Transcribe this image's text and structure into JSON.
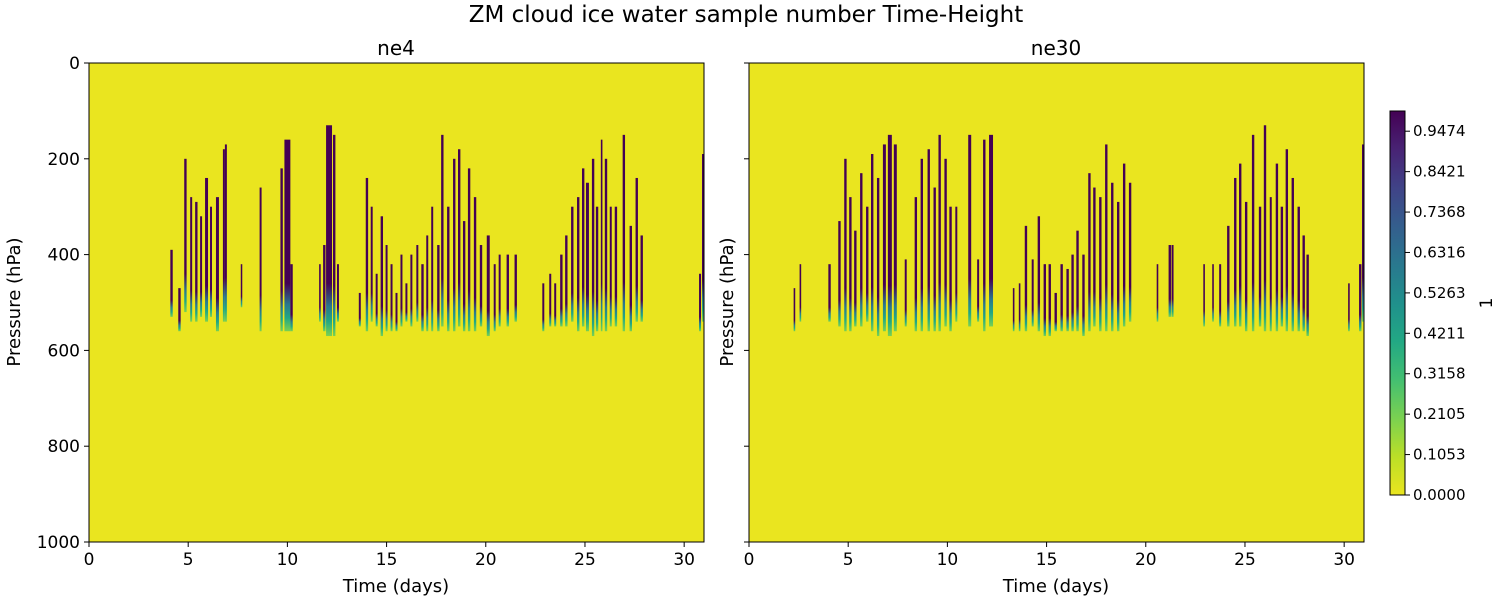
{
  "figure_title": "ZM cloud ice water sample number Time-Height",
  "colors": {
    "background": "#eae51f",
    "viridis": [
      "#440154",
      "#482374",
      "#404387",
      "#345e8d",
      "#29788e",
      "#20908c",
      "#22a884",
      "#43bf71",
      "#7ad151",
      "#bbdf27",
      "#fde725"
    ]
  },
  "chart_data": {
    "type": "heatmap",
    "panels": [
      {
        "title": "ne4",
        "xlabel": "Time (days)",
        "ylabel": "Pressure (hPa)",
        "xlim": [
          0,
          31
        ],
        "ylim": [
          1000,
          0
        ],
        "xticks": [
          "0",
          "5",
          "10",
          "15",
          "20",
          "25",
          "30"
        ],
        "yticks": [
          "0",
          "200",
          "400",
          "600",
          "800",
          "1000"
        ],
        "background_value": 0.0,
        "events": [
          [
            4.1,
            0.12,
            390,
            530
          ],
          [
            4.5,
            0.12,
            470,
            560
          ],
          [
            4.8,
            0.12,
            200,
            520
          ],
          [
            5.1,
            0.1,
            280,
            540
          ],
          [
            5.35,
            0.12,
            290,
            540
          ],
          [
            5.6,
            0.1,
            320,
            530
          ],
          [
            5.85,
            0.15,
            240,
            540
          ],
          [
            6.1,
            0.1,
            300,
            530
          ],
          [
            6.4,
            0.15,
            280,
            560
          ],
          [
            6.75,
            0.1,
            180,
            540
          ],
          [
            6.85,
            0.1,
            170,
            540
          ],
          [
            7.65,
            0.05,
            420,
            510
          ],
          [
            8.6,
            0.1,
            260,
            560
          ],
          [
            9.65,
            0.12,
            220,
            560
          ],
          [
            9.85,
            0.3,
            160,
            560
          ],
          [
            10.15,
            0.12,
            420,
            560
          ],
          [
            11.6,
            0.08,
            420,
            540
          ],
          [
            11.8,
            0.12,
            380,
            560
          ],
          [
            11.95,
            0.3,
            130,
            570
          ],
          [
            12.3,
            0.12,
            150,
            570
          ],
          [
            12.5,
            0.1,
            420,
            540
          ],
          [
            13.6,
            0.1,
            480,
            550
          ],
          [
            13.95,
            0.12,
            240,
            560
          ],
          [
            14.2,
            0.1,
            300,
            540
          ],
          [
            14.45,
            0.1,
            440,
            550
          ],
          [
            14.7,
            0.12,
            320,
            570
          ],
          [
            14.95,
            0.1,
            380,
            560
          ],
          [
            15.2,
            0.1,
            420,
            560
          ],
          [
            15.45,
            0.1,
            480,
            560
          ],
          [
            15.7,
            0.1,
            400,
            550
          ],
          [
            15.95,
            0.1,
            460,
            540
          ],
          [
            16.2,
            0.1,
            400,
            550
          ],
          [
            16.5,
            0.1,
            380,
            540
          ],
          [
            16.75,
            0.12,
            420,
            560
          ],
          [
            17.0,
            0.1,
            360,
            560
          ],
          [
            17.25,
            0.1,
            300,
            560
          ],
          [
            17.55,
            0.12,
            380,
            560
          ],
          [
            17.75,
            0.12,
            150,
            550
          ],
          [
            18.05,
            0.12,
            300,
            560
          ],
          [
            18.35,
            0.12,
            200,
            560
          ],
          [
            18.6,
            0.12,
            180,
            550
          ],
          [
            18.85,
            0.12,
            330,
            560
          ],
          [
            19.1,
            0.12,
            220,
            560
          ],
          [
            19.4,
            0.12,
            280,
            560
          ],
          [
            19.7,
            0.12,
            380,
            550
          ],
          [
            20.05,
            0.15,
            360,
            570
          ],
          [
            20.4,
            0.1,
            420,
            560
          ],
          [
            20.65,
            0.1,
            400,
            550
          ],
          [
            21.05,
            0.12,
            400,
            550
          ],
          [
            21.45,
            0.12,
            400,
            540
          ],
          [
            22.85,
            0.1,
            460,
            560
          ],
          [
            23.2,
            0.1,
            440,
            550
          ],
          [
            23.45,
            0.1,
            460,
            550
          ],
          [
            23.75,
            0.12,
            400,
            550
          ],
          [
            24.0,
            0.12,
            360,
            550
          ],
          [
            24.3,
            0.12,
            300,
            540
          ],
          [
            24.6,
            0.12,
            280,
            560
          ],
          [
            24.85,
            0.12,
            220,
            550
          ],
          [
            25.05,
            0.15,
            250,
            560
          ],
          [
            25.35,
            0.12,
            200,
            570
          ],
          [
            25.55,
            0.12,
            300,
            560
          ],
          [
            25.8,
            0.08,
            160,
            560
          ],
          [
            26.0,
            0.12,
            200,
            560
          ],
          [
            26.25,
            0.1,
            300,
            550
          ],
          [
            26.5,
            0.12,
            300,
            550
          ],
          [
            26.9,
            0.12,
            150,
            560
          ],
          [
            27.25,
            0.12,
            340,
            560
          ],
          [
            27.55,
            0.12,
            240,
            540
          ],
          [
            27.8,
            0.12,
            360,
            540
          ],
          [
            30.75,
            0.1,
            440,
            560
          ],
          [
            30.9,
            0.1,
            190,
            540
          ]
        ]
      },
      {
        "title": "ne30",
        "xlabel": "Time (days)",
        "ylabel": "Pressure (hPa)",
        "xlim": [
          0,
          31
        ],
        "ylim": [
          1000,
          0
        ],
        "xticks": [
          "0",
          "5",
          "10",
          "15",
          "20",
          "25",
          "30"
        ],
        "yticks": [
          "",
          "",
          "",
          "",
          "",
          ""
        ],
        "background_value": 0.0,
        "events": [
          [
            2.25,
            0.08,
            470,
            560
          ],
          [
            2.55,
            0.08,
            420,
            540
          ],
          [
            4.0,
            0.12,
            420,
            540
          ],
          [
            4.5,
            0.12,
            330,
            550
          ],
          [
            4.8,
            0.12,
            200,
            560
          ],
          [
            5.05,
            0.12,
            280,
            560
          ],
          [
            5.3,
            0.12,
            350,
            550
          ],
          [
            5.6,
            0.12,
            230,
            550
          ],
          [
            5.9,
            0.12,
            300,
            540
          ],
          [
            6.15,
            0.12,
            190,
            560
          ],
          [
            6.45,
            0.12,
            240,
            570
          ],
          [
            6.75,
            0.15,
            170,
            560
          ],
          [
            7.0,
            0.2,
            150,
            570
          ],
          [
            7.3,
            0.15,
            170,
            560
          ],
          [
            7.85,
            0.1,
            410,
            550
          ],
          [
            8.35,
            0.12,
            280,
            560
          ],
          [
            8.65,
            0.12,
            200,
            560
          ],
          [
            9.0,
            0.12,
            180,
            560
          ],
          [
            9.3,
            0.12,
            260,
            560
          ],
          [
            9.55,
            0.12,
            150,
            560
          ],
          [
            9.85,
            0.12,
            200,
            550
          ],
          [
            10.1,
            0.12,
            300,
            560
          ],
          [
            10.4,
            0.1,
            300,
            540
          ],
          [
            11.05,
            0.15,
            150,
            550
          ],
          [
            11.5,
            0.1,
            410,
            540
          ],
          [
            11.8,
            0.12,
            160,
            560
          ],
          [
            12.1,
            0.2,
            150,
            550
          ],
          [
            13.3,
            0.08,
            470,
            560
          ],
          [
            13.6,
            0.08,
            460,
            560
          ],
          [
            13.9,
            0.12,
            340,
            560
          ],
          [
            14.25,
            0.1,
            410,
            550
          ],
          [
            14.55,
            0.12,
            320,
            560
          ],
          [
            14.85,
            0.12,
            420,
            570
          ],
          [
            15.1,
            0.12,
            420,
            570
          ],
          [
            15.4,
            0.12,
            480,
            560
          ],
          [
            15.7,
            0.12,
            420,
            560
          ],
          [
            16.0,
            0.12,
            430,
            560
          ],
          [
            16.25,
            0.12,
            400,
            560
          ],
          [
            16.5,
            0.12,
            350,
            560
          ],
          [
            16.8,
            0.12,
            400,
            570
          ],
          [
            17.1,
            0.12,
            230,
            560
          ],
          [
            17.35,
            0.12,
            260,
            550
          ],
          [
            17.65,
            0.12,
            280,
            560
          ],
          [
            17.95,
            0.12,
            170,
            560
          ],
          [
            18.25,
            0.12,
            250,
            560
          ],
          [
            18.55,
            0.12,
            290,
            560
          ],
          [
            18.85,
            0.12,
            210,
            550
          ],
          [
            19.15,
            0.12,
            250,
            540
          ],
          [
            20.55,
            0.08,
            420,
            540
          ],
          [
            21.15,
            0.12,
            380,
            530
          ],
          [
            21.3,
            0.1,
            380,
            530
          ],
          [
            22.9,
            0.08,
            420,
            550
          ],
          [
            23.35,
            0.08,
            420,
            540
          ],
          [
            23.7,
            0.1,
            420,
            550
          ],
          [
            24.1,
            0.12,
            340,
            550
          ],
          [
            24.45,
            0.12,
            240,
            550
          ],
          [
            24.7,
            0.12,
            210,
            550
          ],
          [
            25.0,
            0.12,
            290,
            560
          ],
          [
            25.35,
            0.12,
            150,
            560
          ],
          [
            25.7,
            0.12,
            300,
            550
          ],
          [
            25.95,
            0.12,
            130,
            560
          ],
          [
            26.25,
            0.1,
            280,
            560
          ],
          [
            26.55,
            0.12,
            210,
            560
          ],
          [
            26.8,
            0.12,
            300,
            550
          ],
          [
            27.05,
            0.12,
            180,
            560
          ],
          [
            27.35,
            0.12,
            240,
            560
          ],
          [
            27.65,
            0.12,
            300,
            560
          ],
          [
            27.9,
            0.12,
            360,
            560
          ],
          [
            28.1,
            0.12,
            400,
            570
          ],
          [
            30.2,
            0.08,
            460,
            560
          ],
          [
            30.75,
            0.12,
            420,
            560
          ],
          [
            30.9,
            0.1,
            170,
            540
          ]
        ]
      }
    ],
    "colorbar": {
      "label": "1",
      "ticks": [
        "0.0000",
        "0.1053",
        "0.2105",
        "0.3158",
        "0.4211",
        "0.5263",
        "0.6316",
        "0.7368",
        "0.8421",
        "0.9474"
      ],
      "range": [
        0.0,
        1.0
      ]
    }
  }
}
